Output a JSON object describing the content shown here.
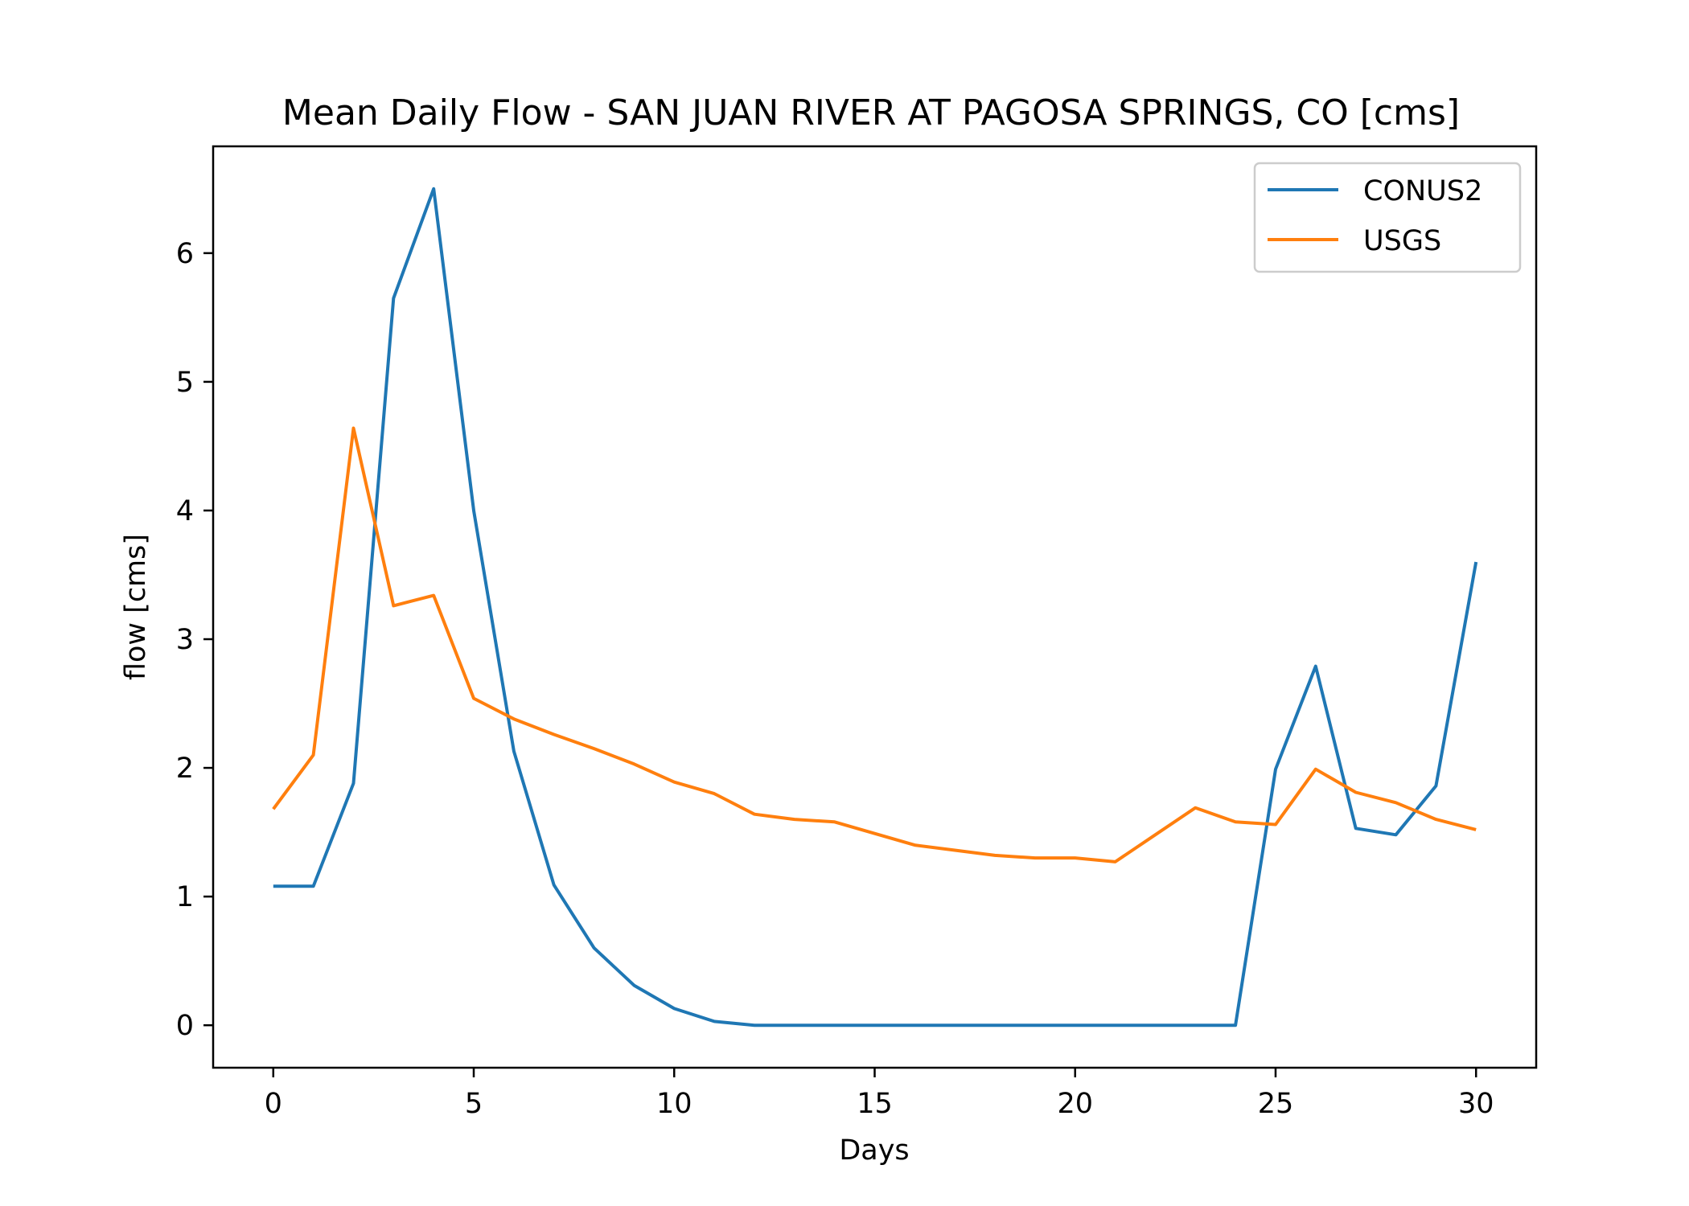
{
  "chart_data": {
    "type": "line",
    "title": "Mean Daily Flow - SAN JUAN RIVER AT PAGOSA SPRINGS, CO [cms]",
    "xlabel": "Days",
    "ylabel": "flow [cms]",
    "xlim": [
      -1.5,
      31.5
    ],
    "ylim": [
      -0.33,
      6.83
    ],
    "xticks": [
      0,
      5,
      10,
      15,
      20,
      25,
      30
    ],
    "yticks": [
      0,
      1,
      2,
      3,
      4,
      5,
      6
    ],
    "grid": false,
    "legend_position": "top-right",
    "x": [
      0,
      1,
      2,
      3,
      4,
      5,
      6,
      7,
      8,
      9,
      10,
      11,
      12,
      13,
      14,
      15,
      16,
      17,
      18,
      19,
      20,
      21,
      22,
      23,
      24,
      25,
      26,
      27,
      28,
      29,
      30
    ],
    "series": [
      {
        "name": "CONUS2",
        "color": "#1f77b4",
        "values": [
          1.08,
          1.08,
          1.88,
          5.65,
          6.5,
          4.0,
          2.13,
          1.09,
          0.6,
          0.31,
          0.13,
          0.03,
          0.0,
          0.0,
          0.0,
          0.0,
          0.0,
          0.0,
          0.0,
          0.0,
          0.0,
          0.0,
          0.0,
          0.0,
          0.0,
          1.99,
          2.79,
          1.53,
          1.48,
          1.86,
          3.6
        ]
      },
      {
        "name": "USGS",
        "color": "#ff7f0e",
        "values": [
          1.68,
          2.1,
          4.64,
          3.26,
          3.34,
          2.54,
          2.38,
          2.26,
          2.15,
          2.03,
          1.89,
          1.8,
          1.64,
          1.6,
          1.58,
          1.49,
          1.4,
          1.36,
          1.32,
          1.3,
          1.3,
          1.27,
          1.48,
          1.69,
          1.58,
          1.56,
          1.99,
          1.81,
          1.73,
          1.6,
          1.52
        ]
      }
    ]
  }
}
